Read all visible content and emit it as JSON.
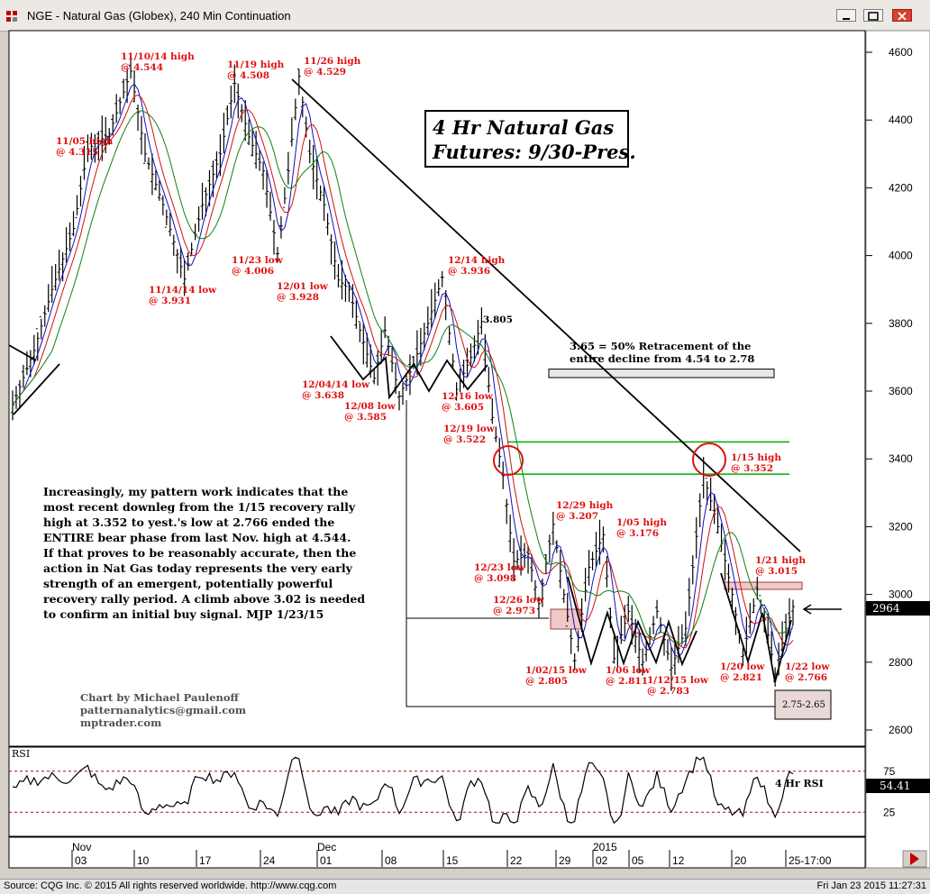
{
  "window": {
    "title": "NGE - Natural Gas (Globex), 240 Min Continuation"
  },
  "footer": {
    "source": "Source: CQG Inc. © 2015 All rights reserved worldwide. http://www.cqg.com",
    "datetime": "Fri Jan 23 2015 11:27:31"
  },
  "colors": {
    "bars": "#000000",
    "ma_fast": "#1010c0",
    "ma_mid": "#d01010",
    "ma_slow": "#108010",
    "retracement_lines": "#00b000",
    "annotations": "#e01010",
    "rsi_ref_lines": "#c00000"
  },
  "chart_data": [
    {
      "type": "bar",
      "style": "ohlc-price",
      "title_box": [
        "4 Hr Natural Gas",
        "Futures: 9/30-Pres."
      ],
      "ylim": [
        2560,
        4660
      ],
      "yticks": [
        2600,
        2800,
        3000,
        3200,
        3400,
        3600,
        3800,
        4000,
        4200,
        4400,
        4600
      ],
      "x_tick_labels": [
        {
          "label": "03",
          "group": "Nov"
        },
        {
          "label": "10"
        },
        {
          "label": "17"
        },
        {
          "label": "24"
        },
        {
          "label": "01",
          "group": "Dec"
        },
        {
          "label": "08"
        },
        {
          "label": "15"
        },
        {
          "label": "22"
        },
        {
          "label": "29"
        },
        {
          "label": "02",
          "group": "2015"
        },
        {
          "label": "05"
        },
        {
          "label": "12"
        },
        {
          "label": "20"
        },
        {
          "label": "25-17:00"
        }
      ],
      "last_price": "2964",
      "key_points": [
        {
          "t": 0,
          "price": 3560
        },
        {
          "t": 6,
          "price": 3720
        },
        {
          "t": 11,
          "price": 3900
        },
        {
          "t": 17,
          "price": 4080
        },
        {
          "t": 21,
          "price": 4315
        },
        {
          "t": 27,
          "price": 4360
        },
        {
          "t": 33,
          "price": 4544
        },
        {
          "t": 37,
          "price": 4300
        },
        {
          "t": 42,
          "price": 4150
        },
        {
          "t": 48,
          "price": 3931
        },
        {
          "t": 53,
          "price": 4150
        },
        {
          "t": 58,
          "price": 4300
        },
        {
          "t": 62,
          "price": 4508
        },
        {
          "t": 66,
          "price": 4350
        },
        {
          "t": 70,
          "price": 4250
        },
        {
          "t": 74,
          "price": 4006
        },
        {
          "t": 77,
          "price": 4250
        },
        {
          "t": 80,
          "price": 4529
        },
        {
          "t": 83,
          "price": 4300
        },
        {
          "t": 87,
          "price": 4150
        },
        {
          "t": 91,
          "price": 3928
        },
        {
          "t": 94,
          "price": 3900
        },
        {
          "t": 97,
          "price": 3780
        },
        {
          "t": 101,
          "price": 3638
        },
        {
          "t": 104,
          "price": 3780
        },
        {
          "t": 108,
          "price": 3585
        },
        {
          "t": 112,
          "price": 3680
        },
        {
          "t": 116,
          "price": 3800
        },
        {
          "t": 120,
          "price": 3936
        },
        {
          "t": 124,
          "price": 3605
        },
        {
          "t": 128,
          "price": 3700
        },
        {
          "t": 131,
          "price": 3805
        },
        {
          "t": 134,
          "price": 3522
        },
        {
          "t": 137,
          "price": 3350
        },
        {
          "t": 140,
          "price": 3098
        },
        {
          "t": 144,
          "price": 3120
        },
        {
          "t": 147,
          "price": 2973
        },
        {
          "t": 151,
          "price": 3207
        },
        {
          "t": 154,
          "price": 3000
        },
        {
          "t": 157,
          "price": 2805
        },
        {
          "t": 161,
          "price": 3080
        },
        {
          "t": 165,
          "price": 3176
        },
        {
          "t": 168,
          "price": 2811
        },
        {
          "t": 172,
          "price": 2950
        },
        {
          "t": 176,
          "price": 2800
        },
        {
          "t": 180,
          "price": 2950
        },
        {
          "t": 184,
          "price": 2783
        },
        {
          "t": 188,
          "price": 2900
        },
        {
          "t": 193,
          "price": 3352
        },
        {
          "t": 197,
          "price": 3200
        },
        {
          "t": 201,
          "price": 3000
        },
        {
          "t": 204,
          "price": 2821
        },
        {
          "t": 208,
          "price": 3015
        },
        {
          "t": 211,
          "price": 2880
        },
        {
          "t": 213,
          "price": 2766
        },
        {
          "t": 216,
          "price": 2900
        },
        {
          "t": 218,
          "price": 2964
        }
      ],
      "annotations": [
        {
          "lines": [
            "11/05 high",
            "@ 4.315"
          ],
          "t": 21,
          "price": 4315
        },
        {
          "lines": [
            "11/10/14 high",
            "@ 4.544"
          ],
          "t": 33,
          "price": 4544
        },
        {
          "lines": [
            "11/19 high",
            "@ 4.508"
          ],
          "t": 62,
          "price": 4508
        },
        {
          "lines": [
            "11/26 high",
            "@ 4.529"
          ],
          "t": 80,
          "price": 4529
        },
        {
          "lines": [
            "11/14/14 low",
            "@ 3.931"
          ],
          "t": 48,
          "price": 3931
        },
        {
          "lines": [
            "11/23 low",
            "@ 4.006"
          ],
          "t": 74,
          "price": 4006
        },
        {
          "lines": [
            "12/01 low",
            "@ 3.928"
          ],
          "t": 91,
          "price": 3928
        },
        {
          "lines": [
            "12/14 high",
            "@ 3.936"
          ],
          "t": 120,
          "price": 3936
        },
        {
          "lines": [
            "12/04/14 low",
            "@ 3.638"
          ],
          "t": 101,
          "price": 3638
        },
        {
          "lines": [
            "12/08 low",
            "@ 3.585"
          ],
          "t": 108,
          "price": 3585
        },
        {
          "lines": [
            "12/16 low",
            "@ 3.605"
          ],
          "t": 124,
          "price": 3605
        },
        {
          "lines": [
            "12/19 low",
            "@ 3.522"
          ],
          "t": 134,
          "price": 3522
        },
        {
          "lines": [
            "12/23 low",
            "@ 3.098"
          ],
          "t": 140,
          "price": 3098
        },
        {
          "lines": [
            "12/26 low",
            "@ 2.973"
          ],
          "t": 147,
          "price": 2973
        },
        {
          "lines": [
            "12/29 high",
            "@ 3.207"
          ],
          "t": 151,
          "price": 3207
        },
        {
          "lines": [
            "1/05 high",
            "@ 3.176"
          ],
          "t": 165,
          "price": 3176
        },
        {
          "lines": [
            "1/02/15 low",
            "@ 2.805"
          ],
          "t": 157,
          "price": 2805
        },
        {
          "lines": [
            "1/06 low",
            "@ 2.811"
          ],
          "t": 168,
          "price": 2811
        },
        {
          "lines": [
            "1/12/15 low",
            "@ 2.783"
          ],
          "t": 184,
          "price": 2783
        },
        {
          "lines": [
            "1/15 high",
            "@ 3.352"
          ],
          "t": 193,
          "price": 3352
        },
        {
          "lines": [
            "1/20 low",
            "@ 2.821"
          ],
          "t": 204,
          "price": 2821
        },
        {
          "lines": [
            "1/21 high",
            "@ 3.015"
          ],
          "t": 208,
          "price": 3015
        },
        {
          "lines": [
            "1/22 low",
            "@ 2.766"
          ],
          "t": 213,
          "price": 2766
        }
      ],
      "marker_label": "3.805",
      "retracement_note": [
        "3.65 = 50% Retracement of the",
        "entire decline from 4.54 to 2.78"
      ],
      "retracement_zone": [
        3640,
        3665
      ],
      "green_levels": [
        3450,
        3355
      ],
      "target_box_label": "2.75-2.65",
      "commentary": [
        "Increasingly, my pattern work indicates that the",
        "most recent downleg from the 1/15 recovery rally",
        "high at 3.352 to yest.'s low at 2.766 ended the",
        "ENTIRE bear phase from last Nov. high at 4.544.",
        "If that proves to be reasonably accurate, then the",
        "action in Nat Gas today represents the very early",
        "strength of an emergent, potentially powerful",
        "recovery rally period. A climb above 3.02 is needed",
        "to confirm an initial buy signal.  MJP  1/23/15"
      ],
      "credit": [
        "Chart by Michael Paulenoff",
        "patternanalytics@gmail.com",
        "mptrader.com"
      ]
    },
    {
      "type": "line",
      "panel": "RSI",
      "panel_label": "RSI",
      "series_label": "4 Hr RSI",
      "ylim": [
        0,
        100
      ],
      "yticks": [
        25,
        75
      ],
      "reference_lines": [
        25,
        75
      ],
      "last_value": "54.41"
    }
  ]
}
